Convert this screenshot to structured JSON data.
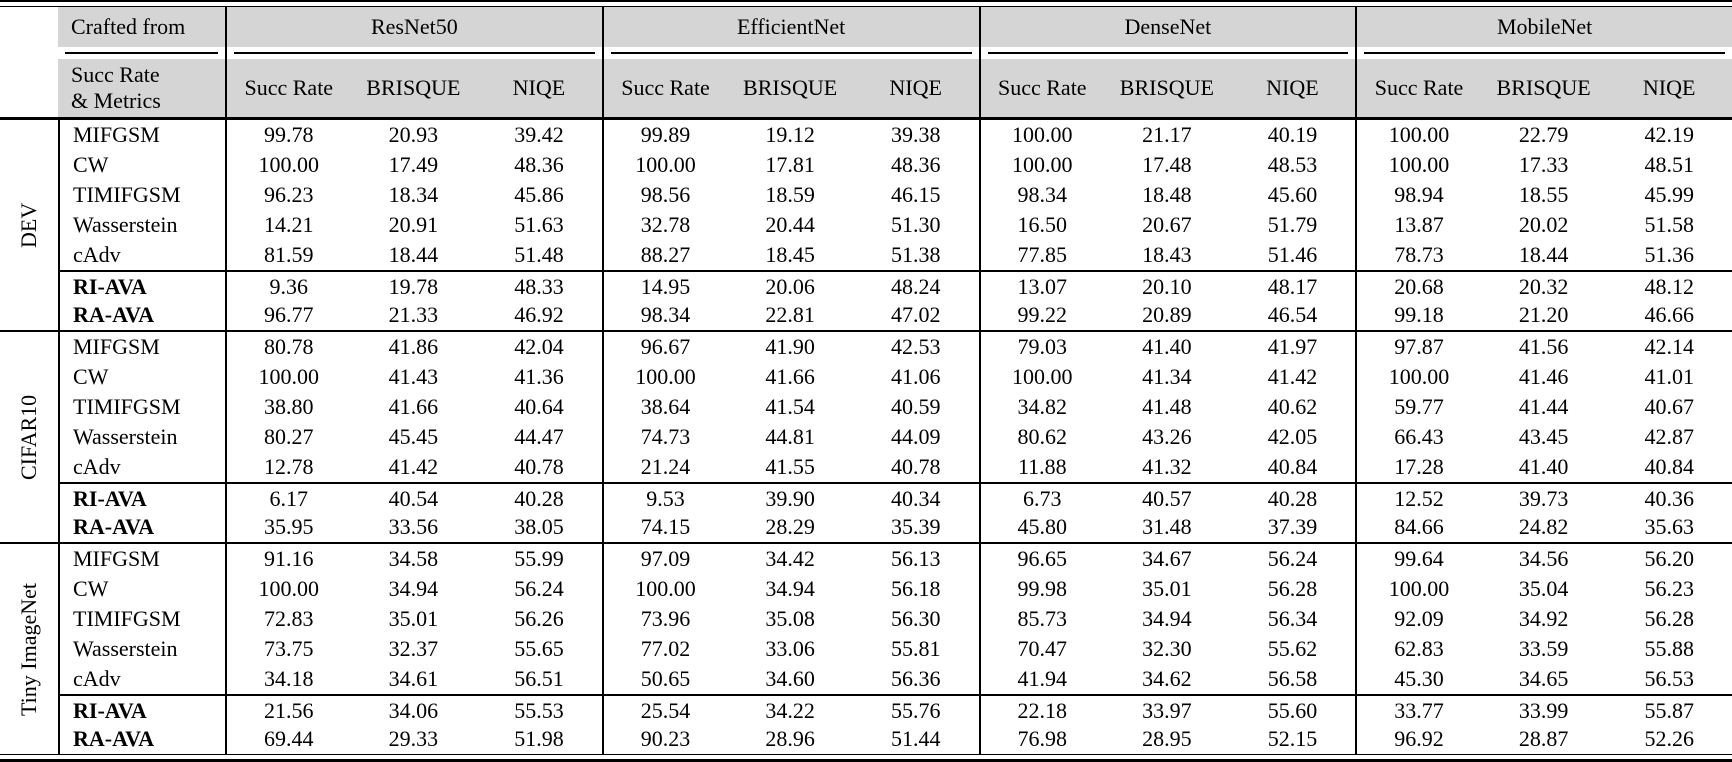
{
  "table": {
    "corner": {
      "row1": "Crafted from",
      "row2_line1": "Succ Rate",
      "row2_line2": "& Metrics"
    },
    "groups": [
      {
        "name": "ResNet50"
      },
      {
        "name": "EfficientNet"
      },
      {
        "name": "DenseNet"
      },
      {
        "name": "MobileNet"
      }
    ],
    "subheaders": [
      "Succ Rate",
      "BRISQUE",
      "NIQE"
    ],
    "sections": [
      {
        "label": "DEV",
        "rows": [
          {
            "method": "MIFGSM",
            "bold": false,
            "rule_above": false,
            "values": [
              "99.78",
              "20.93",
              "39.42",
              "99.89",
              "19.12",
              "39.38",
              "100.00",
              "21.17",
              "40.19",
              "100.00",
              "22.79",
              "42.19"
            ]
          },
          {
            "method": "CW",
            "bold": false,
            "rule_above": false,
            "values": [
              "100.00",
              "17.49",
              "48.36",
              "100.00",
              "17.81",
              "48.36",
              "100.00",
              "17.48",
              "48.53",
              "100.00",
              "17.33",
              "48.51"
            ]
          },
          {
            "method": "TIMIFGSM",
            "bold": false,
            "rule_above": false,
            "values": [
              "96.23",
              "18.34",
              "45.86",
              "98.56",
              "18.59",
              "46.15",
              "98.34",
              "18.48",
              "45.60",
              "98.94",
              "18.55",
              "45.99"
            ]
          },
          {
            "method": "Wasserstein",
            "bold": false,
            "rule_above": false,
            "values": [
              "14.21",
              "20.91",
              "51.63",
              "32.78",
              "20.44",
              "51.30",
              "16.50",
              "20.67",
              "51.79",
              "13.87",
              "20.02",
              "51.58"
            ]
          },
          {
            "method": "cAdv",
            "bold": false,
            "rule_above": false,
            "values": [
              "81.59",
              "18.44",
              "51.48",
              "88.27",
              "18.45",
              "51.38",
              "77.85",
              "18.43",
              "51.46",
              "78.73",
              "18.44",
              "51.36"
            ]
          },
          {
            "method": "RI-AVA",
            "bold": true,
            "rule_above": true,
            "values": [
              "9.36",
              "19.78",
              "48.33",
              "14.95",
              "20.06",
              "48.24",
              "13.07",
              "20.10",
              "48.17",
              "20.68",
              "20.32",
              "48.12"
            ]
          },
          {
            "method": "RA-AVA",
            "bold": true,
            "rule_above": false,
            "values": [
              "96.77",
              "21.33",
              "46.92",
              "98.34",
              "22.81",
              "47.02",
              "99.22",
              "20.89",
              "46.54",
              "99.18",
              "21.20",
              "46.66"
            ]
          }
        ]
      },
      {
        "label": "CIFAR10",
        "rows": [
          {
            "method": "MIFGSM",
            "bold": false,
            "rule_above": false,
            "values": [
              "80.78",
              "41.86",
              "42.04",
              "96.67",
              "41.90",
              "42.53",
              "79.03",
              "41.40",
              "41.97",
              "97.87",
              "41.56",
              "42.14"
            ]
          },
          {
            "method": "CW",
            "bold": false,
            "rule_above": false,
            "values": [
              "100.00",
              "41.43",
              "41.36",
              "100.00",
              "41.66",
              "41.06",
              "100.00",
              "41.34",
              "41.42",
              "100.00",
              "41.46",
              "41.01"
            ]
          },
          {
            "method": "TIMIFGSM",
            "bold": false,
            "rule_above": false,
            "values": [
              "38.80",
              "41.66",
              "40.64",
              "38.64",
              "41.54",
              "40.59",
              "34.82",
              "41.48",
              "40.62",
              "59.77",
              "41.44",
              "40.67"
            ]
          },
          {
            "method": "Wasserstein",
            "bold": false,
            "rule_above": false,
            "values": [
              "80.27",
              "45.45",
              "44.47",
              "74.73",
              "44.81",
              "44.09",
              "80.62",
              "43.26",
              "42.05",
              "66.43",
              "43.45",
              "42.87"
            ]
          },
          {
            "method": "cAdv",
            "bold": false,
            "rule_above": false,
            "values": [
              "12.78",
              "41.42",
              "40.78",
              "21.24",
              "41.55",
              "40.78",
              "11.88",
              "41.32",
              "40.84",
              "17.28",
              "41.40",
              "40.84"
            ]
          },
          {
            "method": "RI-AVA",
            "bold": true,
            "rule_above": true,
            "values": [
              "6.17",
              "40.54",
              "40.28",
              "9.53",
              "39.90",
              "40.34",
              "6.73",
              "40.57",
              "40.28",
              "12.52",
              "39.73",
              "40.36"
            ]
          },
          {
            "method": "RA-AVA",
            "bold": true,
            "rule_above": false,
            "values": [
              "35.95",
              "33.56",
              "38.05",
              "74.15",
              "28.29",
              "35.39",
              "45.80",
              "31.48",
              "37.39",
              "84.66",
              "24.82",
              "35.63"
            ]
          }
        ]
      },
      {
        "label": "Tiny ImageNet",
        "rows": [
          {
            "method": "MIFGSM",
            "bold": false,
            "rule_above": false,
            "values": [
              "91.16",
              "34.58",
              "55.99",
              "97.09",
              "34.42",
              "56.13",
              "96.65",
              "34.67",
              "56.24",
              "99.64",
              "34.56",
              "56.20"
            ]
          },
          {
            "method": "CW",
            "bold": false,
            "rule_above": false,
            "values": [
              "100.00",
              "34.94",
              "56.24",
              "100.00",
              "34.94",
              "56.18",
              "99.98",
              "35.01",
              "56.28",
              "100.00",
              "35.04",
              "56.23"
            ]
          },
          {
            "method": "TIMIFGSM",
            "bold": false,
            "rule_above": false,
            "values": [
              "72.83",
              "35.01",
              "56.26",
              "73.96",
              "35.08",
              "56.30",
              "85.73",
              "34.94",
              "56.34",
              "92.09",
              "34.92",
              "56.28"
            ]
          },
          {
            "method": "Wasserstein",
            "bold": false,
            "rule_above": false,
            "values": [
              "73.75",
              "32.37",
              "55.65",
              "77.02",
              "33.06",
              "55.81",
              "70.47",
              "32.30",
              "55.62",
              "62.83",
              "33.59",
              "55.88"
            ]
          },
          {
            "method": "cAdv",
            "bold": false,
            "rule_above": false,
            "values": [
              "34.18",
              "34.61",
              "56.51",
              "50.65",
              "34.60",
              "56.36",
              "41.94",
              "34.62",
              "56.58",
              "45.30",
              "34.65",
              "56.53"
            ]
          },
          {
            "method": "RI-AVA",
            "bold": true,
            "rule_above": true,
            "values": [
              "21.56",
              "34.06",
              "55.53",
              "25.54",
              "34.22",
              "55.76",
              "22.18",
              "33.97",
              "55.60",
              "33.77",
              "33.99",
              "55.87"
            ]
          },
          {
            "method": "RA-AVA",
            "bold": true,
            "rule_above": false,
            "values": [
              "69.44",
              "29.33",
              "51.98",
              "90.23",
              "28.96",
              "51.44",
              "76.98",
              "28.95",
              "52.15",
              "96.92",
              "28.87",
              "52.26"
            ]
          }
        ]
      }
    ]
  },
  "colors": {
    "header_bg": "#d5d5d5",
    "rule": "#000000"
  }
}
